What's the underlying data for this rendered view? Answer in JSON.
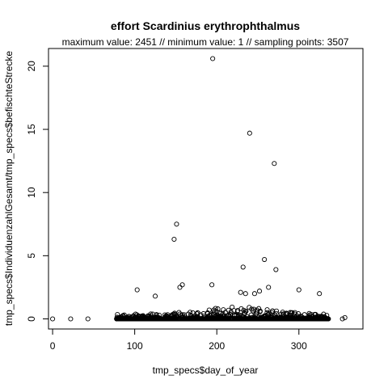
{
  "chart_data": {
    "type": "scatter",
    "title": "effort Scardinius erythrophthalmus",
    "subtitle": "maximum value: 2451  //  minimum value: 1  // sampling points: 3507",
    "xlabel": "tmp_specs$day_of_year",
    "ylabel": "tmp_specs$IndividuenzahlGesamt/tmp_specs$befischteStrecke",
    "xlim": [
      -5,
      378
    ],
    "ylim": [
      -0.8,
      21.4
    ],
    "x_ticks": [
      0,
      100,
      200,
      300
    ],
    "y_ticks": [
      0,
      5,
      10,
      15,
      20
    ],
    "grid": false,
    "marker": "open-circle",
    "outliers": [
      {
        "x": 0,
        "y": 0.0
      },
      {
        "x": 22,
        "y": 0.0
      },
      {
        "x": 43,
        "y": 0.0
      },
      {
        "x": 103,
        "y": 2.3
      },
      {
        "x": 125,
        "y": 1.8
      },
      {
        "x": 148,
        "y": 6.3
      },
      {
        "x": 151,
        "y": 7.5
      },
      {
        "x": 155,
        "y": 2.5
      },
      {
        "x": 158,
        "y": 2.7
      },
      {
        "x": 194,
        "y": 2.7
      },
      {
        "x": 195,
        "y": 20.6
      },
      {
        "x": 229,
        "y": 2.1
      },
      {
        "x": 232,
        "y": 4.1
      },
      {
        "x": 235,
        "y": 2.0
      },
      {
        "x": 240,
        "y": 14.7
      },
      {
        "x": 246,
        "y": 2.0
      },
      {
        "x": 252,
        "y": 2.2
      },
      {
        "x": 258,
        "y": 4.7
      },
      {
        "x": 263,
        "y": 2.5
      },
      {
        "x": 270,
        "y": 12.3
      },
      {
        "x": 272,
        "y": 3.9
      },
      {
        "x": 300,
        "y": 2.3
      },
      {
        "x": 325,
        "y": 2.0
      },
      {
        "x": 353,
        "y": 0.0
      },
      {
        "x": 356,
        "y": 0.1
      }
    ],
    "dense_band": {
      "x_min": 78,
      "x_max": 336,
      "y_min": 0,
      "y_max": 1.0
    }
  }
}
